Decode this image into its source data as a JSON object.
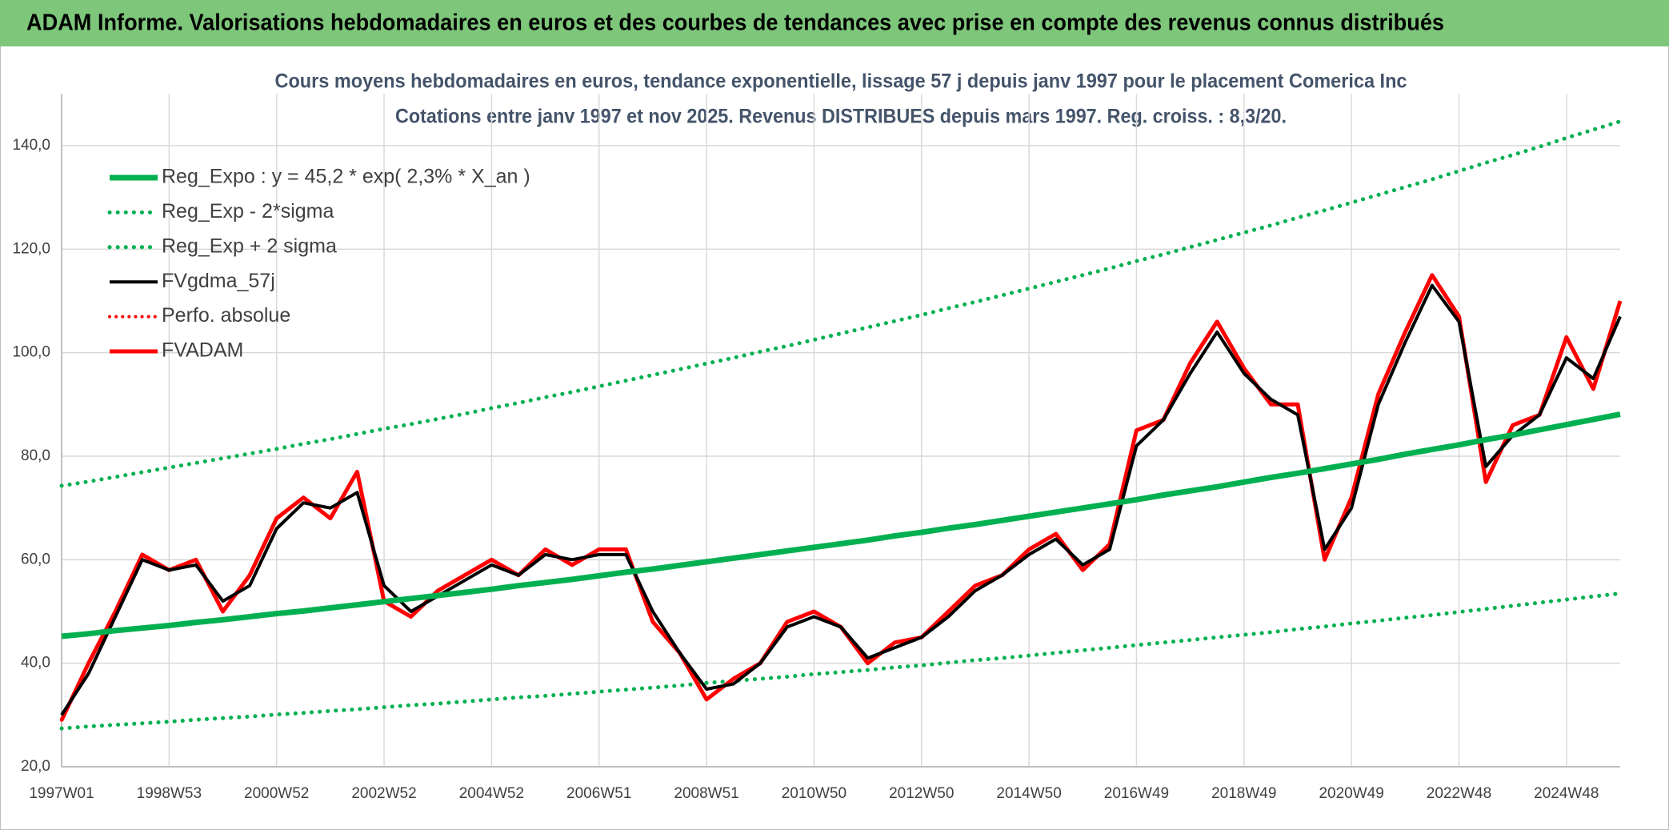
{
  "header": "ADAM Informe. Valorisations hebdomadaires en euros et des courbes de tendances avec prise en compte des revenus connus distribués",
  "chart_data": {
    "type": "line",
    "title": "Cours moyens hebdomadaires en euros, tendance exponentielle, lissage 57 j depuis janv 1997 pour le placement Comerica Inc",
    "subtitle": "Cotations entre janv 1997 et nov 2025. Revenus DISTRIBUES depuis mars 1997. Reg. croiss. : 8,3/20.",
    "categories": [
      "1997W01",
      null,
      null,
      null,
      "1998W53",
      null,
      null,
      null,
      "2000W52",
      null,
      null,
      null,
      "2002W52",
      null,
      null,
      null,
      "2004W52",
      null,
      null,
      null,
      "2006W51",
      null,
      null,
      null,
      "2008W51",
      null,
      null,
      null,
      "2010W50",
      null,
      null,
      null,
      "2012W50",
      null,
      null,
      null,
      "2014W50",
      null,
      null,
      null,
      "2016W49",
      null,
      null,
      null,
      "2018W49",
      null,
      null,
      null,
      "2020W49",
      null,
      null,
      null,
      "2022W48",
      null,
      null,
      null,
      "2024W48",
      null,
      null
    ],
    "ylim": [
      20,
      150
    ],
    "yticks": [
      {
        "value": 20,
        "label": "20,0"
      },
      {
        "value": 40,
        "label": "40,0"
      },
      {
        "value": 60,
        "label": "60,0"
      },
      {
        "value": 80,
        "label": "80,0"
      },
      {
        "value": 100,
        "label": "100,0"
      },
      {
        "value": 120,
        "label": "120,0"
      },
      {
        "value": 140,
        "label": "140,0"
      }
    ],
    "grid": true,
    "legend": "upper-left",
    "series": [
      {
        "name": "Reg_Expo : y = 45,2 * exp( 2,3% *  X_an )",
        "color": "#00b050",
        "dotted": false,
        "width": 7,
        "values": [
          45.2,
          45.7,
          46.3,
          46.8,
          47.3,
          47.9,
          48.4,
          49.0,
          49.6,
          50.1,
          50.7,
          51.3,
          51.9,
          52.5,
          53.1,
          53.7,
          54.3,
          55.0,
          55.6,
          56.2,
          56.9,
          57.6,
          58.2,
          58.9,
          59.6,
          60.3,
          61.0,
          61.7,
          62.4,
          63.1,
          63.8,
          64.6,
          65.3,
          66.1,
          66.8,
          67.6,
          68.4,
          69.2,
          70.0,
          70.8,
          71.6,
          72.5,
          73.3,
          74.1,
          75.0,
          75.9,
          76.7,
          77.6,
          78.5,
          79.4,
          80.4,
          81.3,
          82.2,
          83.2,
          84.1,
          85.1,
          86.1,
          87.1,
          88.1
        ]
      },
      {
        "name": "Reg_Exp - 2*sigma",
        "color": "#00b050",
        "dotted": true,
        "width": 5,
        "values": [
          27.4,
          27.8,
          28.1,
          28.4,
          28.7,
          29.1,
          29.4,
          29.7,
          30.1,
          30.4,
          30.8,
          31.1,
          31.5,
          31.9,
          32.2,
          32.6,
          33.0,
          33.4,
          33.7,
          34.1,
          34.5,
          34.9,
          35.3,
          35.7,
          36.2,
          36.6,
          37.0,
          37.4,
          37.9,
          38.3,
          38.7,
          39.2,
          39.6,
          40.1,
          40.6,
          41.0,
          41.5,
          42.0,
          42.5,
          43.0,
          43.5,
          44.0,
          44.5,
          45.0,
          45.5,
          46.0,
          46.6,
          47.1,
          47.7,
          48.2,
          48.8,
          49.3,
          49.9,
          50.5,
          51.1,
          51.7,
          52.3,
          52.9,
          53.5
        ]
      },
      {
        "name": "Reg_Exp + 2 sigma",
        "color": "#00b050",
        "dotted": true,
        "width": 5,
        "values": [
          74.3,
          75.1,
          76.0,
          76.9,
          77.8,
          78.7,
          79.6,
          80.5,
          81.4,
          82.4,
          83.3,
          84.3,
          85.3,
          86.2,
          87.2,
          88.2,
          89.3,
          90.3,
          91.4,
          92.4,
          93.5,
          94.6,
          95.7,
          96.8,
          97.9,
          99.0,
          100.2,
          101.3,
          102.5,
          103.7,
          104.9,
          106.1,
          107.3,
          108.6,
          109.8,
          111.1,
          112.4,
          113.7,
          115.0,
          116.3,
          117.7,
          119.0,
          120.4,
          121.8,
          123.2,
          124.6,
          126.1,
          127.5,
          129.0,
          130.5,
          132.0,
          133.5,
          135.1,
          136.7,
          138.2,
          139.8,
          141.5,
          143.1,
          144.7
        ]
      },
      {
        "name": "FVgdma_57j",
        "color": "#000000",
        "dotted": false,
        "width": 4,
        "values": [
          30,
          38,
          49,
          60,
          58,
          59,
          52,
          55,
          66,
          71,
          70,
          73,
          55,
          50,
          53,
          56,
          59,
          57,
          61,
          60,
          61,
          61,
          50,
          42,
          35,
          36,
          40,
          47,
          49,
          47,
          41,
          43,
          45,
          49,
          54,
          57,
          61,
          64,
          59,
          62,
          82,
          87,
          96,
          104,
          96,
          91,
          88,
          62,
          70,
          90,
          102,
          113,
          106,
          78,
          84,
          88,
          99,
          95,
          107
        ]
      },
      {
        "name": "Perfo. absolue",
        "color": "#ff0000",
        "dotted": true,
        "width": 4,
        "values": [
          29,
          40,
          50,
          61,
          58,
          60,
          50,
          57,
          68,
          72,
          68,
          77,
          52,
          49,
          54,
          57,
          60,
          57,
          62,
          59,
          62,
          62,
          48,
          42,
          33,
          37,
          40,
          48,
          50,
          47,
          40,
          44,
          45,
          50,
          55,
          57,
          62,
          65,
          58,
          63,
          85,
          87,
          98,
          106,
          97,
          90,
          90,
          60,
          72,
          92,
          104,
          115,
          107,
          75,
          86,
          88,
          103,
          93,
          110
        ]
      },
      {
        "name": "FVADAM",
        "color": "#ff0000",
        "dotted": false,
        "width": 5,
        "values": [
          29,
          40,
          50,
          61,
          58,
          60,
          50,
          57,
          68,
          72,
          68,
          77,
          52,
          49,
          54,
          57,
          60,
          57,
          62,
          59,
          62,
          62,
          48,
          42,
          33,
          37,
          40,
          48,
          50,
          47,
          40,
          44,
          45,
          50,
          55,
          57,
          62,
          65,
          58,
          63,
          85,
          87,
          98,
          106,
          97,
          90,
          90,
          60,
          72,
          92,
          104,
          115,
          107,
          75,
          86,
          88,
          103,
          93,
          110
        ]
      }
    ]
  }
}
